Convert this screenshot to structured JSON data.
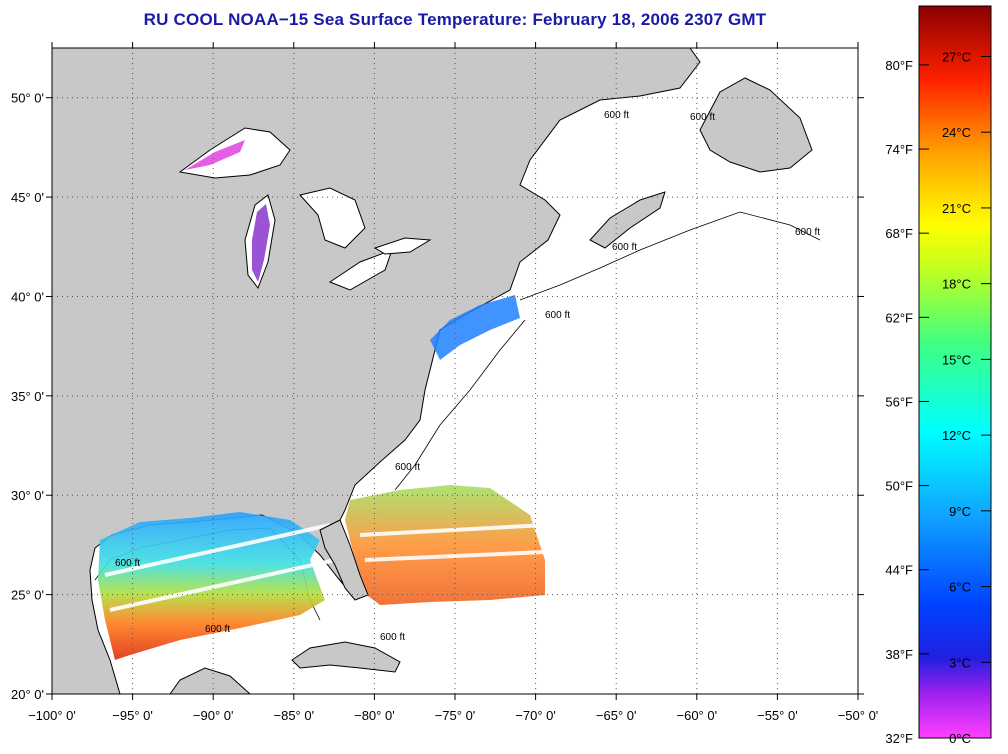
{
  "title": "RU COOL  NOAA−15  Sea Surface Temperature:  February 18, 2006 2307 GMT",
  "map": {
    "lon_range": [
      -100,
      -50
    ],
    "lat_range": [
      20,
      52.5
    ],
    "lon_ticks": [
      "−100° 0'",
      "−95° 0'",
      "−90° 0'",
      "−85° 0'",
      "−80° 0'",
      "−75° 0'",
      "−70° 0'",
      "−65° 0'",
      "−60° 0'",
      "−55° 0'",
      "−50° 0'"
    ],
    "lat_ticks": [
      "50° 0'",
      "45° 0'",
      "40° 0'",
      "35° 0'",
      "30° 0'",
      "25° 0'",
      "20° 0'"
    ],
    "grid": "dotted",
    "land_color": "#c8c8c8",
    "water_color": "#ffffff",
    "isobath_label": "600 ft"
  },
  "colorbar": {
    "f_labels": [
      "80°F",
      "74°F",
      "68°F",
      "62°F",
      "56°F",
      "50°F",
      "44°F",
      "38°F",
      "32°F"
    ],
    "c_labels": [
      "27°C",
      "24°C",
      "21°C",
      "18°C",
      "15°C",
      "12°C",
      "9°C",
      "6°C",
      "3°C",
      "0°C"
    ],
    "range_c": [
      0,
      29
    ]
  }
}
